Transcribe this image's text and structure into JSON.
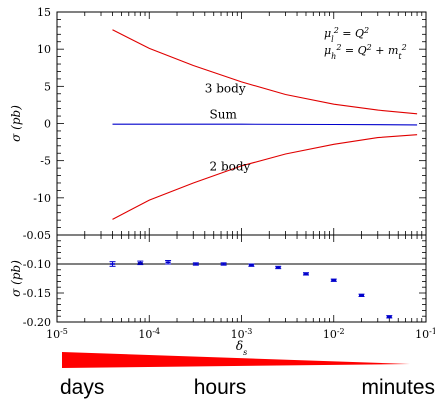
{
  "chart_data": [
    {
      "type": "line",
      "xscale": "log",
      "xlim": [
        1e-05,
        0.1
      ],
      "ylim": [
        -15,
        15
      ],
      "ylabel": "σ (pb)",
      "yticks": [
        "15",
        "10",
        "5",
        "0",
        "-5",
        "-10"
      ],
      "legend_lines": [
        "μ_l^2 = Q^2",
        "μ_h^2 = Q^2 + m_t^2"
      ],
      "series": [
        {
          "name": "3 body",
          "color": "#e00000",
          "x": [
            4e-05,
            0.0001,
            0.0003,
            0.001,
            0.003,
            0.01,
            0.03,
            0.08
          ],
          "y": [
            12.6,
            10.1,
            7.8,
            5.6,
            3.9,
            2.6,
            1.8,
            1.3
          ]
        },
        {
          "name": "Sum",
          "color": "#0000cc",
          "x": [
            4e-05,
            0.001,
            0.01,
            0.08
          ],
          "y": [
            -0.1,
            -0.1,
            -0.13,
            -0.19
          ]
        },
        {
          "name": "2 body",
          "color": "#e00000",
          "x": [
            4e-05,
            0.0001,
            0.0003,
            0.001,
            0.003,
            0.01,
            0.03,
            0.08
          ],
          "y": [
            -12.9,
            -10.3,
            -8.0,
            -5.7,
            -4.1,
            -2.8,
            -1.9,
            -1.5
          ]
        }
      ]
    },
    {
      "type": "scatter",
      "xscale": "log",
      "xlim": [
        1e-05,
        0.1
      ],
      "ylim": [
        -0.2,
        -0.05
      ],
      "xlabel": "δ_s",
      "ylabel": "σ (pb)",
      "yticks": [
        "-0.05",
        "-0.10",
        "-0.15",
        "-0.20"
      ],
      "xticks": [
        "10^-5",
        "10^-4",
        "10^-3",
        "10^-2",
        "10^-1"
      ],
      "reference_line": -0.1,
      "points": [
        {
          "x": 4e-05,
          "y": -0.1,
          "err": 0.004
        },
        {
          "x": 8e-05,
          "y": -0.098,
          "err": 0.003
        },
        {
          "x": 0.00016,
          "y": -0.097,
          "err": 0.003
        },
        {
          "x": 0.00032,
          "y": -0.1,
          "err": 0.002
        },
        {
          "x": 0.00064,
          "y": -0.1,
          "err": 0.002
        },
        {
          "x": 0.00128,
          "y": -0.102,
          "err": 0.002
        },
        {
          "x": 0.0025,
          "y": -0.106,
          "err": 0.002
        },
        {
          "x": 0.005,
          "y": -0.117,
          "err": 0.002
        },
        {
          "x": 0.01,
          "y": -0.128,
          "err": 0.002
        },
        {
          "x": 0.02,
          "y": -0.154,
          "err": 0.002
        },
        {
          "x": 0.04,
          "y": -0.191,
          "err": 0.002
        }
      ]
    }
  ],
  "speed_scale": {
    "labels": [
      "days",
      "hours",
      "minutes"
    ],
    "color": "#ff0000"
  }
}
